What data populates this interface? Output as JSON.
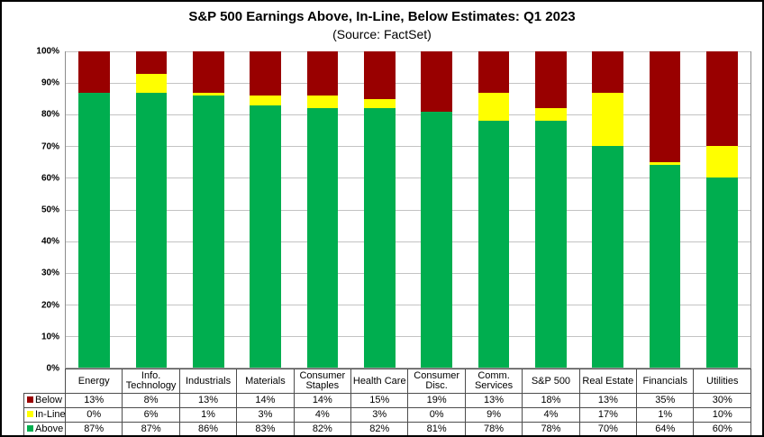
{
  "title": "S&P 500 Earnings Above, In-Line, Below Estimates: Q1 2023",
  "subtitle": "(Source: FactSet)",
  "y_axis": {
    "ticks": [
      "100%",
      "90%",
      "80%",
      "70%",
      "60%",
      "50%",
      "40%",
      "30%",
      "20%",
      "10%",
      "0%"
    ]
  },
  "colors": {
    "below": "#990000",
    "inline": "#FFFF00",
    "above": "#00AE4F",
    "gridline": "#c3c3c3",
    "plot_border": "#8c8c8c",
    "table_border": "#4d4d4d"
  },
  "chart_data": {
    "type": "bar",
    "stacked": true,
    "grid": true,
    "ylim": [
      0,
      100
    ],
    "legend_position": "table-left",
    "categories": [
      "Energy",
      "Info. Technology",
      "Industrials",
      "Materials",
      "Consumer Staples",
      "Health Care",
      "Consumer Disc.",
      "Comm. Services",
      "S&P 500",
      "Real Estate",
      "Financials",
      "Utilities"
    ],
    "series": [
      {
        "name": "Below",
        "color": "#990000",
        "values": [
          13,
          8,
          13,
          14,
          14,
          15,
          19,
          13,
          18,
          13,
          35,
          30
        ],
        "display_values": [
          "13%",
          "8%",
          "13%",
          "14%",
          "14%",
          "15%",
          "19%",
          "13%",
          "18%",
          "13%",
          "35%",
          "30%"
        ]
      },
      {
        "name": "In-Line",
        "color": "#FFFF00",
        "values": [
          0,
          6,
          1,
          3,
          4,
          3,
          0,
          9,
          4,
          17,
          1,
          10
        ],
        "display_values": [
          "0%",
          "6%",
          "1%",
          "3%",
          "4%",
          "3%",
          "0%",
          "9%",
          "4%",
          "17%",
          "1%",
          "10%"
        ]
      },
      {
        "name": "Above",
        "color": "#00AE4F",
        "values": [
          87,
          87,
          86,
          83,
          82,
          82,
          81,
          78,
          78,
          70,
          64,
          60
        ],
        "display_values": [
          "87%",
          "87%",
          "86%",
          "83%",
          "82%",
          "82%",
          "81%",
          "78%",
          "78%",
          "70%",
          "64%",
          "60%"
        ]
      }
    ]
  }
}
